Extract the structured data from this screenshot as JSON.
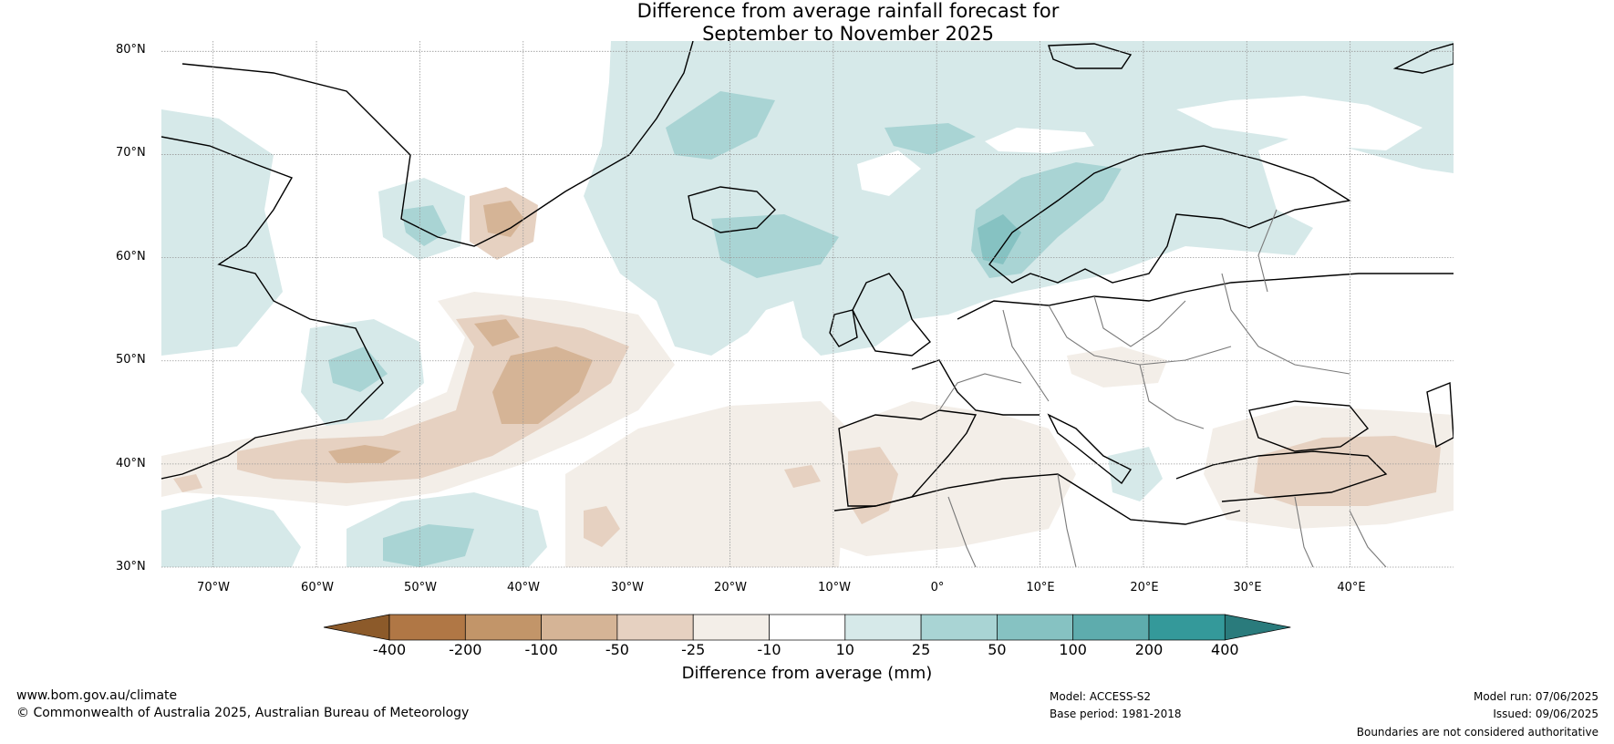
{
  "title": {
    "line1": "Difference from average rainfall forecast for",
    "line2": "September to November 2025"
  },
  "map": {
    "lat_labels": [
      "80°N",
      "70°N",
      "60°N",
      "50°N",
      "40°N",
      "30°N"
    ],
    "lon_labels": [
      "70°W",
      "60°W",
      "50°W",
      "40°W",
      "30°W",
      "20°W",
      "10°W",
      "0°",
      "10°E",
      "20°E",
      "30°E",
      "40°E"
    ],
    "extent": {
      "lon_min": -75,
      "lon_max": 50,
      "lat_min": 30,
      "lat_max": 81
    },
    "colors": {
      "land_line": "#000000",
      "border": "#7a7a7a",
      "grid": "#999999"
    },
    "rain_regions": [
      {
        "label": "wetter",
        "level": "10 to 25",
        "color": "#d6e9e9"
      },
      {
        "label": "wetter",
        "level": "25 to 50",
        "color": "#a9d4d4"
      },
      {
        "label": "wetter",
        "level": "50 to 100",
        "color": "#86c2c2"
      },
      {
        "label": "drier",
        "level": "-25 to -10",
        "color": "#f3eee8"
      },
      {
        "label": "drier",
        "level": "-50 to -25",
        "color": "#e6d1c1"
      },
      {
        "label": "drier",
        "level": "-100 to -50",
        "color": "#d5b496"
      }
    ]
  },
  "colorbar": {
    "ticks": [
      "-400",
      "-200",
      "-100",
      "-50",
      "-25",
      "-10",
      "10",
      "25",
      "50",
      "100",
      "200",
      "400"
    ],
    "colors": [
      "#8c5a2a",
      "#b07745",
      "#c29569",
      "#d5b496",
      "#e6d1c1",
      "#f3eee8",
      "#ffffff",
      "#d6e9e9",
      "#a9d4d4",
      "#86c2c2",
      "#5eacad",
      "#34999a",
      "#2a7b7c"
    ],
    "label": "Difference from average (mm)"
  },
  "footer": {
    "website": "www.bom.gov.au/climate",
    "copyright": "© Commonwealth of Australia 2025, Australian Bureau of Meteorology",
    "model": "Model: ACCESS-S2",
    "base_period": "Base period: 1981-2018",
    "model_run": "Model run: 07/06/2025",
    "issued": "Issued: 09/06/2025",
    "disclaimer": "Boundaries are not considered authoritative"
  }
}
